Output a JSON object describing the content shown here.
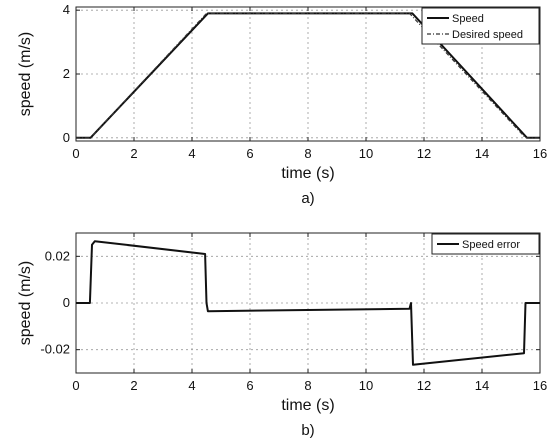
{
  "chart_data": [
    {
      "type": "line",
      "caption": "a)",
      "xlabel": "time (s)",
      "ylabel": "speed (m/s)",
      "xlim": [
        0,
        16
      ],
      "ylim": [
        -0.1,
        4.1
      ],
      "xticks": [
        "0",
        "2",
        "4",
        "6",
        "8",
        "10",
        "12",
        "14",
        "16"
      ],
      "yticks": [
        "0",
        "2",
        "4"
      ],
      "grid": true,
      "legend_position": "top-right",
      "series": [
        {
          "name": "Speed",
          "style": "solid",
          "x": [
            0,
            0.5,
            4.55,
            11.6,
            15.55,
            16
          ],
          "y": [
            0,
            0,
            3.9,
            3.9,
            0,
            0
          ]
        },
        {
          "name": "Desired speed",
          "style": "dash-dot",
          "x": [
            0,
            0.5,
            4.5,
            11.5,
            15.5,
            16
          ],
          "y": [
            0,
            0,
            3.9,
            3.9,
            0,
            0
          ]
        }
      ]
    },
    {
      "type": "line",
      "caption": "b)",
      "xlabel": "time (s)",
      "ylabel": "speed (m/s)",
      "xlim": [
        0,
        16
      ],
      "ylim": [
        -0.03,
        0.03
      ],
      "xticks": [
        "0",
        "2",
        "4",
        "6",
        "8",
        "10",
        "12",
        "14",
        "16"
      ],
      "yticks": [
        "0.02",
        "0",
        "-0.02"
      ],
      "ytick_values": [
        0.02,
        0,
        -0.02
      ],
      "grid": true,
      "legend_position": "top-right",
      "series": [
        {
          "name": "Speed error",
          "style": "solid",
          "x": [
            0,
            0.48,
            0.55,
            0.65,
            4.45,
            4.5,
            4.55,
            11.5,
            11.55,
            11.62,
            15.45,
            15.5,
            15.6,
            16
          ],
          "y": [
            0,
            0,
            0.025,
            0.0265,
            0.021,
            0,
            -0.0035,
            -0.0025,
            0,
            -0.0265,
            -0.0215,
            0,
            0,
            0
          ]
        }
      ]
    }
  ]
}
